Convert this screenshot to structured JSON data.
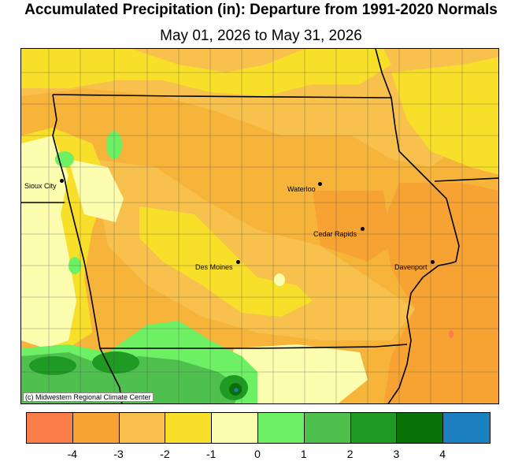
{
  "title": "Accumulated Precipitation (in): Departure from 1991-2020 Normals",
  "subtitle": "May 01, 2026 to May 31, 2026",
  "credit": "(c) Midwestern Regional Climate Center",
  "cities": [
    {
      "name": "Sioux City"
    },
    {
      "name": "Waterloo"
    },
    {
      "name": "Cedar Rapids"
    },
    {
      "name": "Des Moines"
    },
    {
      "name": "Davenport"
    }
  ],
  "legend": {
    "colors": [
      "#fb7d4a",
      "#f6a334",
      "#f8c14e",
      "#f7df2a",
      "#fdfdb0",
      "#6ef065",
      "#4fc04d",
      "#1f9a23",
      "#087108",
      "#1c80c0"
    ],
    "ticks": [
      "-4",
      "-3",
      "-2",
      "-1",
      "0",
      "1",
      "2",
      "3",
      "4"
    ]
  }
}
